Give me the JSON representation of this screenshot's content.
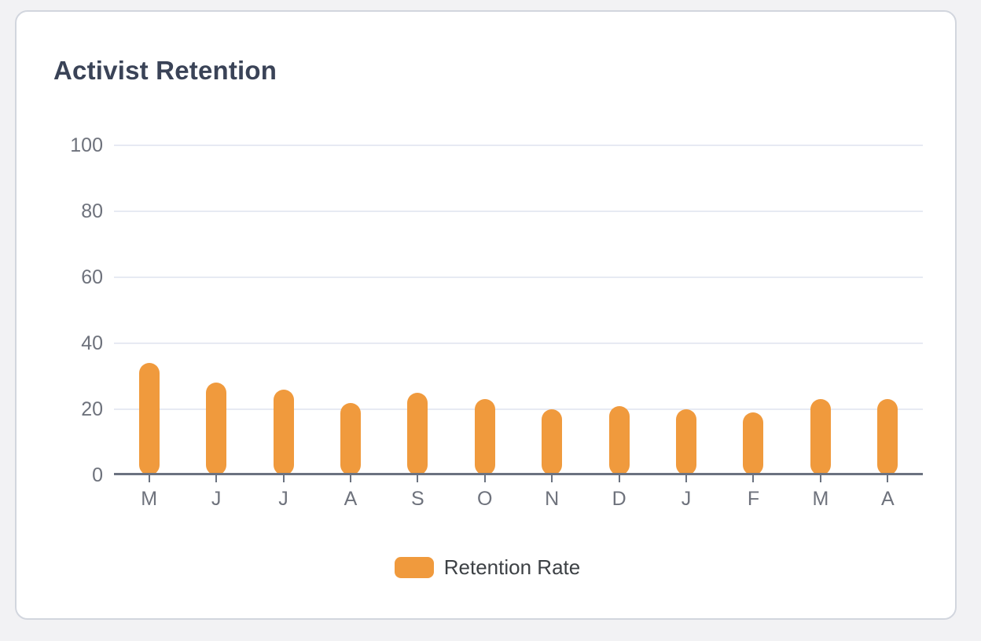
{
  "card": {
    "title": "Activist Retention"
  },
  "chart_data": {
    "type": "bar",
    "title": "Activist Retention",
    "categories": [
      "M",
      "J",
      "J",
      "A",
      "S",
      "O",
      "N",
      "D",
      "J",
      "F",
      "M",
      "A"
    ],
    "series": [
      {
        "name": "Retention Rate",
        "values": [
          34,
          28,
          26,
          22,
          25,
          23,
          20,
          21,
          20,
          19,
          23,
          23
        ]
      }
    ],
    "xlabel": "",
    "ylabel": "",
    "ylim": [
      0,
      100
    ],
    "yticks": [
      0,
      20,
      40,
      60,
      80,
      100
    ],
    "grid": true,
    "legend_position": "bottom",
    "bar_shape": "rounded-capsule"
  },
  "colors": {
    "page_bg": "#f2f2f4",
    "card_bg": "#ffffff",
    "card_border": "#d2d6de",
    "title": "#3a4357",
    "bar": "#f09a3d",
    "gridline": "#e7eaf3",
    "axis": "#6b7280",
    "tick_label": "#6e727c",
    "legend_text": "#3d4145"
  }
}
